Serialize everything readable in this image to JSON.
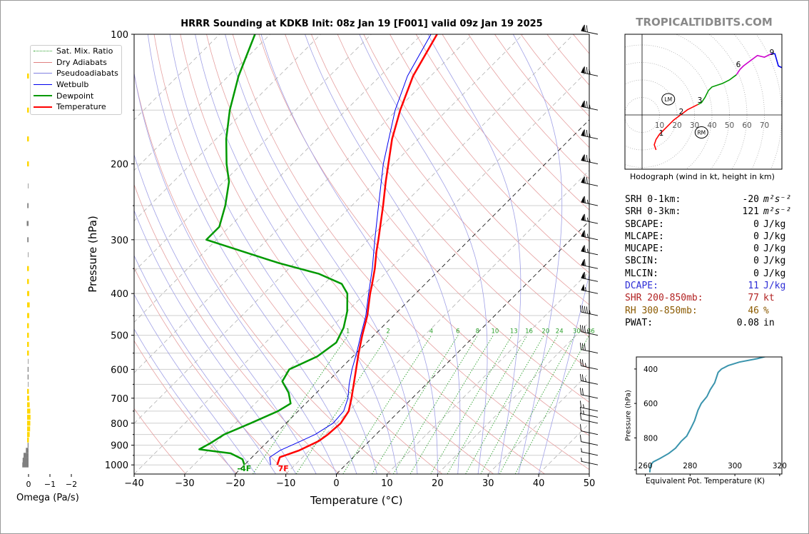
{
  "title": "HRRR Sounding at KDKB Init: 08z Jan 19 [F001] valid 09z Jan 19 2025",
  "brand": "TROPICALTIDBITS.COM",
  "colors": {
    "temperature": "#ff0000",
    "dewpoint": "#009900",
    "wetbulb": "#0000ee",
    "theta_e": "#3a94ad",
    "omega_up": "#ffd700",
    "omega_down": "#808080",
    "dcape": "#2d2dd6",
    "shr": "#b22222",
    "rh": "#8b5a00"
  },
  "skewt": {
    "ylabel": "Pressure (hPa)",
    "xlabel": "Temperature (°C)",
    "x_ticks": [
      "−40",
      "−30",
      "−20",
      "−10",
      "0",
      "10",
      "20",
      "30",
      "40",
      "50"
    ],
    "y_ticks": [
      "100",
      "200",
      "300",
      "400",
      "500",
      "600",
      "700",
      "800",
      "900",
      "1000"
    ],
    "mix_ratio_labels": [
      "1",
      "2",
      "4",
      "6",
      "8",
      "10",
      "13",
      "16",
      "20",
      "24",
      "30",
      "36"
    ],
    "surface_dewpoint_label": "-4F",
    "surface_temp_label": "7F"
  },
  "legend": [
    {
      "label": "Sat. Mix. Ratio",
      "style": "dotted",
      "color": "#2ca02c"
    },
    {
      "label": "Dry Adiabats",
      "style": "solid",
      "color": "#e08080"
    },
    {
      "label": "Pseudoadiabats",
      "style": "solid",
      "color": "#8080e0"
    },
    {
      "label": "Wetbulb",
      "style": "solid",
      "color": "#0000ee"
    },
    {
      "label": "Dewpoint",
      "style": "thick",
      "color": "#009900"
    },
    {
      "label": "Temperature",
      "style": "thick",
      "color": "#ff0000"
    }
  ],
  "omega": {
    "xlabel": "Omega (Pa/s)",
    "x_ticks": [
      "0",
      "−1",
      "−2"
    ]
  },
  "hodograph": {
    "caption": "Hodograph (wind in kt, height in km)",
    "ring_labels": [
      "10",
      "20",
      "30",
      "40",
      "50",
      "60",
      "70"
    ],
    "height_labels": [
      "1",
      "2",
      "3",
      "6",
      "9"
    ],
    "lm_label": "LM",
    "rm_label": "RM"
  },
  "stats": [
    {
      "label": "SRH 0-1km:",
      "value": "-20",
      "unit": "m²s⁻²",
      "color": "#000000"
    },
    {
      "label": "SRH 0-3km:",
      "value": "121",
      "unit": "m²s⁻²",
      "color": "#000000"
    },
    {
      "label": "SBCAPE:",
      "value": "0",
      "unit": "J/kg",
      "color": "#000000"
    },
    {
      "label": "MLCAPE:",
      "value": "0",
      "unit": "J/kg",
      "color": "#000000"
    },
    {
      "label": "MUCAPE:",
      "value": "0",
      "unit": "J/kg",
      "color": "#000000"
    },
    {
      "label": "SBCIN:",
      "value": "0",
      "unit": "J/kg",
      "color": "#000000"
    },
    {
      "label": "MLCIN:",
      "value": "0",
      "unit": "J/kg",
      "color": "#000000"
    },
    {
      "label": "DCAPE:",
      "value": "11",
      "unit": "J/kg",
      "color": "#2d2dd6"
    },
    {
      "label": "SHR 200-850mb:",
      "value": "77",
      "unit": "kt",
      "color": "#b22222"
    },
    {
      "label": "RH 300-850mb:",
      "value": "46",
      "unit": "%",
      "color": "#8b5a00"
    },
    {
      "label": "PWAT:",
      "value": "0.08",
      "unit": "in",
      "color": "#000000"
    }
  ],
  "theta_e_panel": {
    "xlabel": "Equivalent Pot. Temperature (K)",
    "ylabel": "Pressure (hPa)",
    "x_ticks": [
      "260",
      "280",
      "300",
      "320"
    ],
    "y_ticks": [
      "400",
      "600",
      "800"
    ]
  },
  "chart_data": [
    {
      "type": "line",
      "name": "skew-t",
      "ylabel": "Pressure (hPa)",
      "xlabel": "Temperature (°C)",
      "xlim": [
        -40,
        50
      ],
      "ylim": [
        1050,
        100
      ],
      "y_scale": "log",
      "skew": "45°",
      "series": [
        {
          "name": "Temperature",
          "points": [
            [
              1000,
              -13.5
            ],
            [
              960,
              -14.5
            ],
            [
              925,
              -12
            ],
            [
              880,
              -10
            ],
            [
              850,
              -9.5
            ],
            [
              800,
              -9.2
            ],
            [
              750,
              -10
            ],
            [
              700,
              -12
            ],
            [
              650,
              -14.3
            ],
            [
              600,
              -16.8
            ],
            [
              550,
              -19.5
            ],
            [
              500,
              -22.3
            ],
            [
              450,
              -25.2
            ],
            [
              400,
              -29
            ],
            [
              380,
              -30.5
            ],
            [
              350,
              -33
            ],
            [
              320,
              -36
            ],
            [
              300,
              -38
            ],
            [
              250,
              -43.8
            ],
            [
              220,
              -48
            ],
            [
              200,
              -51
            ],
            [
              175,
              -55.2
            ],
            [
              150,
              -59.3
            ],
            [
              125,
              -63.5
            ],
            [
              100,
              -67
            ]
          ]
        },
        {
          "name": "Dewpoint",
          "points": [
            [
              1000,
              -20
            ],
            [
              970,
              -21.5
            ],
            [
              940,
              -25
            ],
            [
              920,
              -32
            ],
            [
              890,
              -31
            ],
            [
              850,
              -30
            ],
            [
              800,
              -27
            ],
            [
              750,
              -24
            ],
            [
              720,
              -23
            ],
            [
              680,
              -25.5
            ],
            [
              640,
              -29
            ],
            [
              600,
              -30
            ],
            [
              560,
              -27
            ],
            [
              520,
              -26
            ],
            [
              480,
              -27.5
            ],
            [
              440,
              -30
            ],
            [
              400,
              -33.5
            ],
            [
              380,
              -36.5
            ],
            [
              360,
              -43
            ],
            [
              340,
              -53
            ],
            [
              300,
              -72
            ],
            [
              280,
              -72
            ],
            [
              250,
              -75
            ],
            [
              220,
              -79
            ],
            [
              200,
              -83
            ],
            [
              175,
              -88
            ],
            [
              150,
              -93
            ],
            [
              125,
              -98
            ],
            [
              100,
              -103
            ]
          ]
        },
        {
          "name": "Wetbulb",
          "points": [
            [
              1000,
              -14.8
            ],
            [
              960,
              -16.5
            ],
            [
              925,
              -15.8
            ],
            [
              880,
              -13.5
            ],
            [
              850,
              -12
            ],
            [
              800,
              -10.7
            ],
            [
              750,
              -11
            ],
            [
              700,
              -12.7
            ],
            [
              650,
              -15.2
            ],
            [
              600,
              -17.6
            ],
            [
              550,
              -19.9
            ],
            [
              500,
              -22.6
            ],
            [
              450,
              -25.5
            ],
            [
              400,
              -29.3
            ],
            [
              350,
              -33.5
            ],
            [
              300,
              -38.7
            ],
            [
              250,
              -44.7
            ],
            [
              200,
              -52
            ],
            [
              150,
              -60.3
            ],
            [
              125,
              -64.6
            ],
            [
              100,
              -68.2
            ]
          ]
        }
      ]
    },
    {
      "type": "bar",
      "name": "omega",
      "xlabel": "Omega (Pa/s)",
      "xlim": [
        0.4,
        -2.5
      ],
      "levels": [
        1000,
        975,
        950,
        925,
        900,
        875,
        850,
        825,
        800,
        775,
        750,
        725,
        700,
        675,
        650,
        625,
        600,
        575,
        550,
        525,
        500,
        475,
        450,
        425,
        400,
        375,
        350,
        325,
        300,
        275,
        250,
        225,
        200,
        175,
        150,
        125
      ],
      "values": [
        0.35,
        0.33,
        0.28,
        0.15,
        0.05,
        -0.08,
        -0.12,
        -0.14,
        -0.15,
        -0.16,
        -0.15,
        -0.12,
        -0.1,
        -0.06,
        0.03,
        0.05,
        0.05,
        0.03,
        -0.01,
        -0.02,
        -0.05,
        -0.07,
        -0.1,
        -0.12,
        -0.1,
        -0.06,
        -0.03,
        0.03,
        0.07,
        0.1,
        0.07,
        0.03,
        -0.03,
        -0.05,
        -0.05,
        -0.02
      ]
    },
    {
      "type": "line",
      "name": "hodograph",
      "x_unit": "kt",
      "y_unit": "kt",
      "points": [
        [
          8,
          -20
        ],
        [
          7,
          -17
        ],
        [
          8,
          -14
        ],
        [
          10,
          -11
        ],
        [
          14,
          -7
        ],
        [
          18,
          -3
        ],
        [
          22,
          0
        ],
        [
          26,
          3
        ],
        [
          32,
          6
        ],
        [
          34,
          7
        ],
        [
          36,
          10
        ],
        [
          38,
          14
        ],
        [
          40,
          16
        ],
        [
          46,
          18
        ],
        [
          50,
          20
        ],
        [
          54,
          23
        ],
        [
          56,
          26
        ],
        [
          58,
          28
        ],
        [
          62,
          31
        ],
        [
          66,
          34
        ],
        [
          70,
          33
        ],
        [
          74,
          35
        ],
        [
          76,
          35
        ],
        [
          78,
          28
        ],
        [
          80,
          27
        ]
      ],
      "height_marks_km": [
        {
          "km": 1,
          "u": 11
        },
        {
          "km": 2,
          "u": 22
        },
        {
          "km": 3,
          "u": 34
        },
        {
          "km": 6,
          "u": 56
        },
        {
          "km": 9,
          "u": 76
        }
      ],
      "storm_motion": {
        "LM": [
          15,
          9
        ],
        "RM": [
          34,
          -10
        ]
      }
    },
    {
      "type": "line",
      "name": "theta-e",
      "xlabel": "Equivalent Pot. Temperature (K)",
      "ylabel": "Pressure (hPa)",
      "xlim": [
        256,
        321
      ],
      "ylim": [
        1000,
        300
      ],
      "points": [
        [
          1000,
          262
        ],
        [
          960,
          262.3
        ],
        [
          940,
          263.5
        ],
        [
          920,
          266.5
        ],
        [
          890,
          270.5
        ],
        [
          860,
          273.5
        ],
        [
          820,
          276
        ],
        [
          790,
          278.5
        ],
        [
          740,
          280.5
        ],
        [
          700,
          282
        ],
        [
          640,
          283.5
        ],
        [
          600,
          285
        ],
        [
          560,
          287.5
        ],
        [
          520,
          289
        ],
        [
          480,
          291
        ],
        [
          440,
          292
        ],
        [
          420,
          292.5
        ],
        [
          400,
          294
        ],
        [
          380,
          297
        ],
        [
          360,
          302
        ],
        [
          340,
          310
        ],
        [
          320,
          316
        ],
        [
          308,
          320
        ]
      ]
    },
    {
      "type": "barbs",
      "name": "wind-profile",
      "levels_hpa": [
        100,
        125,
        150,
        175,
        200,
        225,
        250,
        275,
        300,
        325,
        350,
        375,
        400,
        450,
        500,
        550,
        600,
        650,
        700,
        750,
        775,
        800,
        850,
        900,
        950,
        1000
      ],
      "speeds_kt": [
        70,
        75,
        75,
        75,
        75,
        70,
        65,
        65,
        65,
        65,
        60,
        60,
        55,
        45,
        35,
        30,
        25,
        25,
        20,
        15,
        15,
        10,
        10,
        10,
        5,
        5
      ]
    }
  ]
}
